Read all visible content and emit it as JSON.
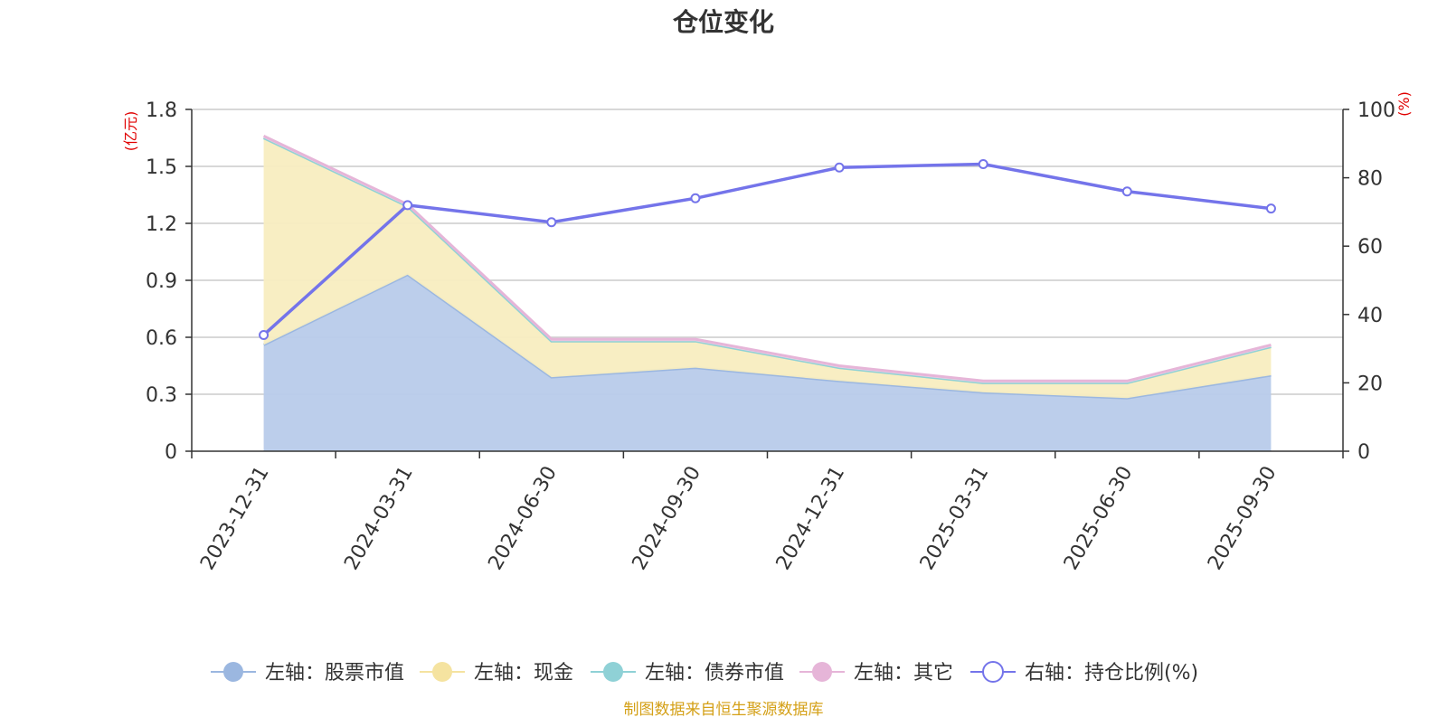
{
  "chart_data": {
    "type": "area",
    "title": "仓位变化",
    "left_axis_label": "(亿元)",
    "right_axis_label": "(%)",
    "categories": [
      "2023-12-31",
      "2024-03-31",
      "2024-06-30",
      "2024-09-30",
      "2024-12-31",
      "2025-03-31",
      "2025-06-30",
      "2025-09-30"
    ],
    "left_ylim": [
      0,
      1.8
    ],
    "left_ticks": [
      "0",
      "0.3",
      "0.6",
      "0.9",
      "1.2",
      "1.5",
      "1.8"
    ],
    "right_ylim": [
      0,
      100
    ],
    "right_ticks": [
      "0",
      "20",
      "40",
      "60",
      "80",
      "100"
    ],
    "grid": true,
    "legend_position": "bottom",
    "series": [
      {
        "name": "左轴：股票市值",
        "axis": "left",
        "kind": "stacked-area",
        "color": "#9bb7e0",
        "fill": "#b8cbea",
        "values": [
          0.56,
          0.93,
          0.39,
          0.44,
          0.37,
          0.31,
          0.28,
          0.4
        ]
      },
      {
        "name": "左轴：现金",
        "axis": "left",
        "kind": "stacked-area",
        "color": "#f5e3a0",
        "fill": "#f8edc0",
        "values": [
          1.09,
          0.36,
          0.19,
          0.14,
          0.07,
          0.05,
          0.08,
          0.15
        ]
      },
      {
        "name": "左轴：债券市值",
        "axis": "left",
        "kind": "stacked-area",
        "color": "#8fd1d6",
        "fill": "#b9e3e6",
        "values": [
          0,
          0,
          0,
          0,
          0,
          0,
          0,
          0
        ]
      },
      {
        "name": "左轴：其它",
        "axis": "left",
        "kind": "stacked-area",
        "color": "#e6b5d8",
        "fill": "#f0d4e8",
        "values": [
          0.01,
          0.01,
          0.01,
          0.01,
          0.01,
          0.01,
          0.01,
          0.01
        ]
      },
      {
        "name": "右轴：持仓比例(%)",
        "axis": "right",
        "kind": "line",
        "color": "#7474ea",
        "values": [
          34,
          72,
          67,
          74,
          83,
          84,
          76,
          71
        ]
      }
    ]
  },
  "source_text": "制图数据来自恒生聚源数据库"
}
